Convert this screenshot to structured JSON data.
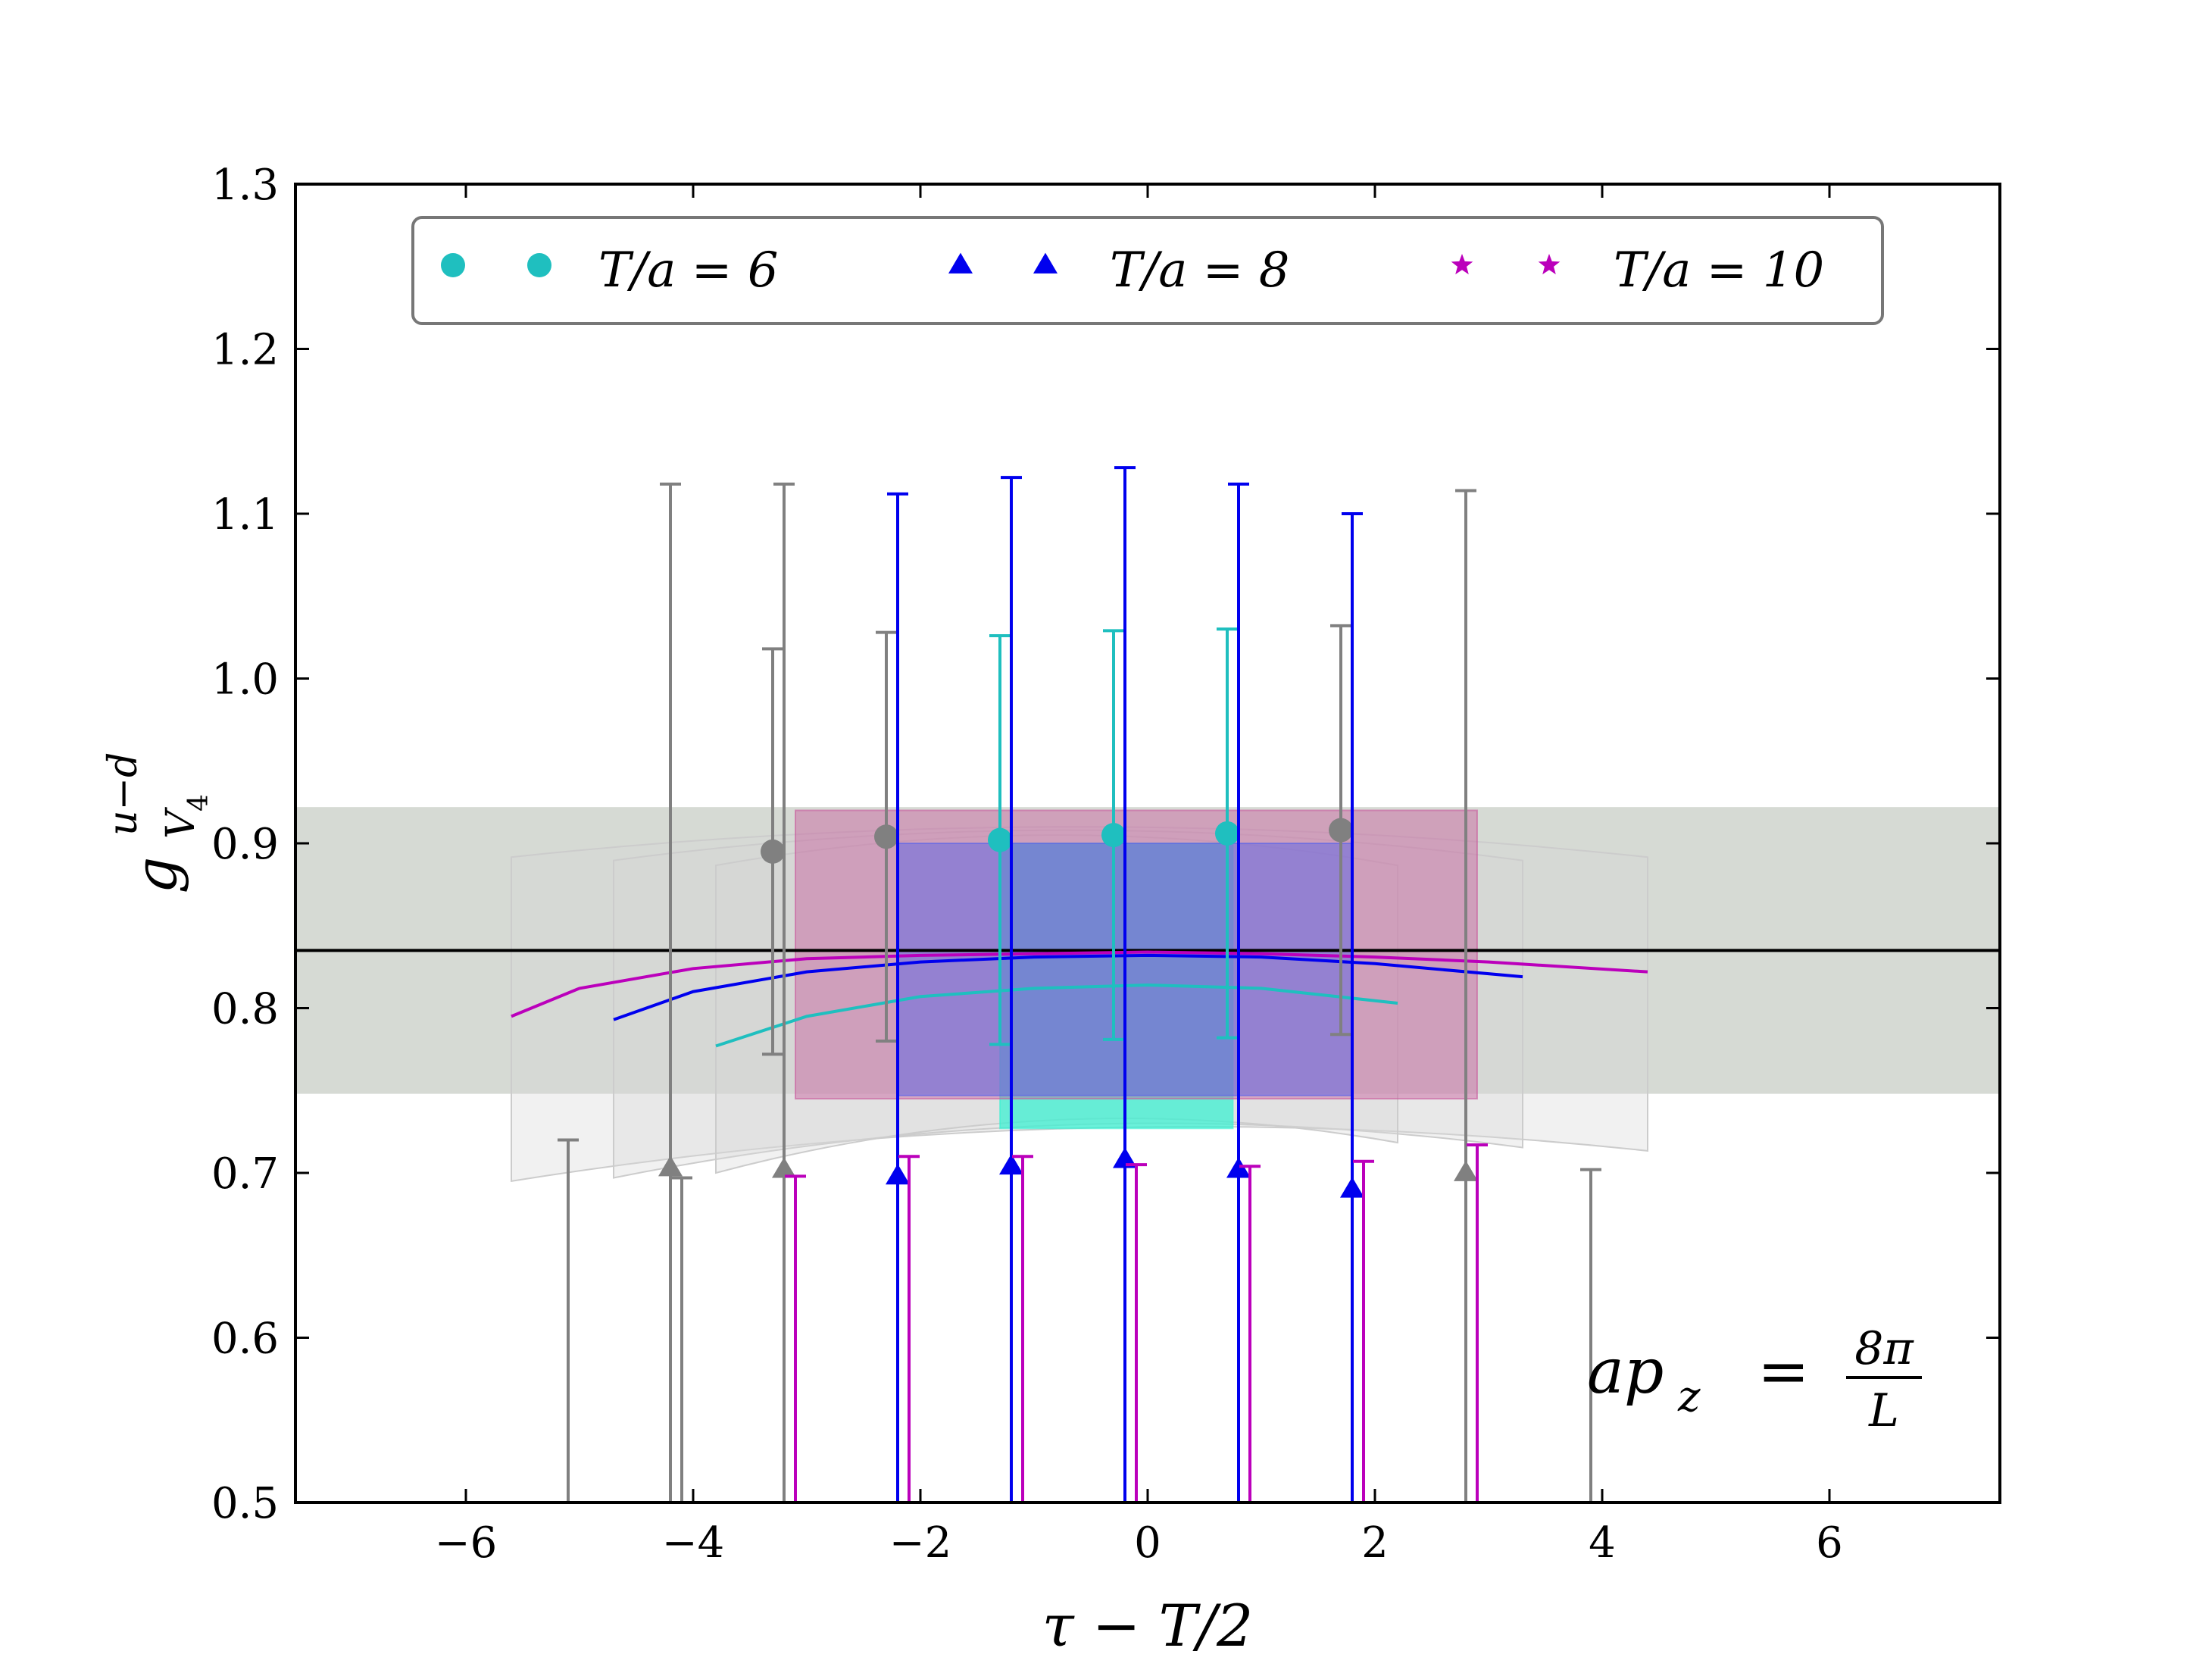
{
  "chart_data": {
    "type": "scatter",
    "xlabel": "τ − T/2",
    "ylabel": "g",
    "ylabel_sup": "u−d",
    "ylabel_sub": "V",
    "ylabel_subsub": "4",
    "xlim": [
      -7.5,
      7.5
    ],
    "ylim": [
      0.5,
      1.3
    ],
    "xticks": [
      -6,
      -4,
      -2,
      0,
      2,
      4,
      6
    ],
    "xtick_labels": [
      "−6",
      "−4",
      "−2",
      "0",
      "2",
      "4",
      "6"
    ],
    "yticks": [
      0.5,
      0.6,
      0.7,
      0.8,
      0.9,
      1.0,
      1.1,
      1.2,
      1.3
    ],
    "ytick_labels": [
      "0.5",
      "0.6",
      "0.7",
      "0.8",
      "0.9",
      "1.0",
      "1.1",
      "1.2",
      "1.3"
    ],
    "legend_position": "top",
    "annotation": {
      "lhs": "ap",
      "lhs_sub": "z",
      "eq": "=",
      "num": "8π",
      "den": "L"
    },
    "colors": {
      "T6": "#1fbfbf",
      "T8": "#0000ee",
      "T10": "#bb00bb",
      "gray": "#808080",
      "band": "#b4bcb0",
      "line": "#000000"
    },
    "reference_line": 0.835,
    "gray_band": [
      0.748,
      0.922
    ],
    "series": [
      {
        "name": "T/a = 6",
        "marker": "circle",
        "color_key": "T6",
        "points": [
          {
            "x": -3.3,
            "y": 0.895,
            "lo": 0.772,
            "hi": 1.018,
            "gray": true
          },
          {
            "x": -2.3,
            "y": 0.904,
            "lo": 0.78,
            "hi": 1.028,
            "gray": true
          },
          {
            "x": -1.3,
            "y": 0.902,
            "lo": 0.778,
            "hi": 1.026,
            "gray": false
          },
          {
            "x": -0.3,
            "y": 0.905,
            "lo": 0.781,
            "hi": 1.029,
            "gray": false
          },
          {
            "x": 0.7,
            "y": 0.906,
            "lo": 0.782,
            "hi": 1.03,
            "gray": false
          },
          {
            "x": 1.7,
            "y": 0.908,
            "lo": 0.784,
            "hi": 1.032,
            "gray": true
          }
        ],
        "fit_curve": {
          "x": [
            -3.8,
            -3.0,
            -2.0,
            -1.0,
            0.0,
            1.0,
            2.2
          ],
          "y": [
            0.777,
            0.795,
            0.807,
            0.812,
            0.814,
            0.812,
            0.803
          ]
        },
        "fit_band": {
          "x": [
            -1.3,
            0.75
          ],
          "lo": 0.727,
          "hi": 0.9
        },
        "ghost_band": {
          "x": [
            -3.8,
            2.2
          ],
          "lo": 0.7,
          "hi": 0.905
        }
      },
      {
        "name": "T/a = 8",
        "marker": "triangle",
        "color_key": "T8",
        "points": [
          {
            "x": -4.2,
            "y": 0.703,
            "lo": 0.48,
            "hi": 1.118,
            "gray": true
          },
          {
            "x": -3.2,
            "y": 0.702,
            "lo": 0.48,
            "hi": 1.118,
            "gray": true
          },
          {
            "x": -2.2,
            "y": 0.698,
            "lo": 0.48,
            "hi": 1.112,
            "gray": false
          },
          {
            "x": -1.2,
            "y": 0.704,
            "lo": 0.48,
            "hi": 1.122,
            "gray": false
          },
          {
            "x": -0.2,
            "y": 0.708,
            "lo": 0.48,
            "hi": 1.128,
            "gray": false
          },
          {
            "x": 0.8,
            "y": 0.702,
            "lo": 0.48,
            "hi": 1.118,
            "gray": false
          },
          {
            "x": 1.8,
            "y": 0.69,
            "lo": 0.48,
            "hi": 1.1,
            "gray": false
          },
          {
            "x": 2.8,
            "y": 0.7,
            "lo": 0.48,
            "hi": 1.114,
            "gray": true
          }
        ],
        "fit_curve": {
          "x": [
            -4.7,
            -4.0,
            -3.0,
            -2.0,
            -1.0,
            0.0,
            1.0,
            2.0,
            3.3
          ],
          "y": [
            0.793,
            0.81,
            0.822,
            0.828,
            0.831,
            0.832,
            0.831,
            0.827,
            0.819
          ]
        },
        "fit_band": {
          "x": [
            -2.2,
            1.8
          ],
          "lo": 0.747,
          "hi": 0.9
        },
        "ghost_band": {
          "x": [
            -4.7,
            3.3
          ],
          "lo": 0.697,
          "hi": 0.908
        }
      },
      {
        "name": "T/a = 10",
        "marker": "star",
        "color_key": "T10",
        "points": [
          {
            "x": -5.1,
            "y": 0.48,
            "lo": 0.48,
            "hi": 0.72,
            "gray": true
          },
          {
            "x": -4.1,
            "y": 0.48,
            "lo": 0.48,
            "hi": 0.697,
            "gray": true
          },
          {
            "x": -3.1,
            "y": 0.48,
            "lo": 0.48,
            "hi": 0.698,
            "gray": false
          },
          {
            "x": -2.1,
            "y": 0.48,
            "lo": 0.48,
            "hi": 0.71,
            "gray": false
          },
          {
            "x": -1.1,
            "y": 0.48,
            "lo": 0.48,
            "hi": 0.71,
            "gray": false
          },
          {
            "x": -0.1,
            "y": 0.48,
            "lo": 0.48,
            "hi": 0.705,
            "gray": false
          },
          {
            "x": 0.9,
            "y": 0.48,
            "lo": 0.48,
            "hi": 0.704,
            "gray": false
          },
          {
            "x": 1.9,
            "y": 0.48,
            "lo": 0.48,
            "hi": 0.707,
            "gray": false
          },
          {
            "x": 2.9,
            "y": 0.48,
            "lo": 0.48,
            "hi": 0.717,
            "gray": false
          },
          {
            "x": 3.9,
            "y": 0.48,
            "lo": 0.48,
            "hi": 0.702,
            "gray": true
          }
        ],
        "fit_curve": {
          "x": [
            -5.6,
            -5.0,
            -4.0,
            -3.0,
            -2.0,
            -1.0,
            0.0,
            1.0,
            2.0,
            3.0,
            4.4
          ],
          "y": [
            0.795,
            0.812,
            0.824,
            0.83,
            0.832,
            0.833,
            0.834,
            0.833,
            0.831,
            0.828,
            0.822
          ]
        },
        "fit_band": {
          "x": [
            -3.1,
            2.9
          ],
          "lo": 0.745,
          "hi": 0.92
        },
        "ghost_band": {
          "x": [
            -5.6,
            4.4
          ],
          "lo": 0.695,
          "hi": 0.91
        }
      }
    ]
  }
}
